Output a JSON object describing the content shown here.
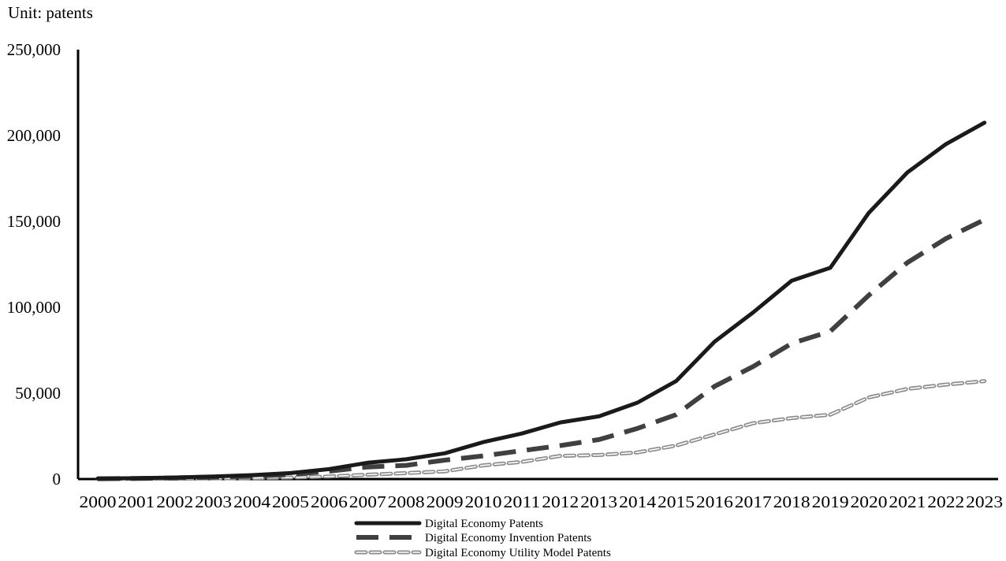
{
  "chart_data": {
    "type": "line",
    "unit_label": "Unit: patents",
    "categories": [
      "2000",
      "2001",
      "2002",
      "2003",
      "2004",
      "2005",
      "2006",
      "2007",
      "2008",
      "2009",
      "2010",
      "2011",
      "2012",
      "2013",
      "2014",
      "2015",
      "2016",
      "2017",
      "2018",
      "2019",
      "2020",
      "2021",
      "2022",
      "2023"
    ],
    "ylim": [
      0,
      250000
    ],
    "yticks": [
      "0",
      "50,000",
      "100,000",
      "150,000",
      "200,000",
      "250,000"
    ],
    "ytick_values": [
      0,
      50000,
      100000,
      150000,
      200000,
      250000
    ],
    "grid": false,
    "legend_position": "bottom",
    "series": [
      {
        "name": "Digital Economy Patents",
        "style": "solid",
        "color": "#1a1a1a",
        "values": [
          300,
          500,
          900,
          1500,
          2300,
          3500,
          5800,
          9500,
          11500,
          15000,
          21500,
          26500,
          33000,
          36500,
          44500,
          57000,
          80000,
          97000,
          115500,
          123000,
          155000,
          178500,
          195000,
          207500
        ]
      },
      {
        "name": "Digital Economy Invention Patents",
        "style": "dashed",
        "color": "#404040",
        "values": [
          200,
          350,
          650,
          1100,
          1700,
          2600,
          4600,
          7000,
          8000,
          11000,
          13500,
          16500,
          19500,
          23000,
          29500,
          37500,
          54000,
          65500,
          79000,
          86000,
          107000,
          126000,
          140000,
          151000
        ]
      },
      {
        "name": "Digital Economy Utility Model Patents",
        "style": "dotted-double",
        "color": "#8c8c8c",
        "values": [
          100,
          150,
          250,
          400,
          600,
          900,
          1500,
          2500,
          3500,
          4500,
          8000,
          10000,
          13500,
          14000,
          15500,
          19500,
          26000,
          32500,
          35500,
          37500,
          47500,
          52500,
          55000,
          57000
        ]
      }
    ]
  }
}
